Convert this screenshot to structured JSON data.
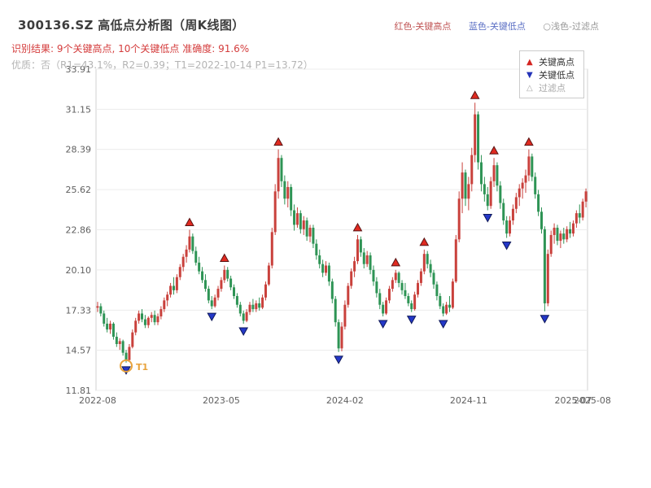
{
  "header": {
    "title": "300136.SZ 高低点分析图（周K线图）",
    "legend_top": [
      {
        "label": "红色-关键高点"
      },
      {
        "label": "蓝色-关键低点"
      },
      {
        "label": "○浅色-过滤点"
      }
    ],
    "result_line": "识别结果: 9个关键高点, 10个关键低点  准确度: 91.6%",
    "quality_line": "优质：否（R1=43.1%，R2=0.39；T1=2022-10-14 P1=13.72）"
  },
  "chart_data": {
    "type": "candlestick",
    "title": "300136.SZ 高低点分析图（周K线图）",
    "ylim": [
      11.81,
      33.91
    ],
    "y_ticks": [
      11.81,
      14.57,
      17.33,
      20.1,
      22.86,
      25.62,
      28.39,
      31.15,
      33.91
    ],
    "x_ticks": [
      {
        "label": "2022-08",
        "week": 0
      },
      {
        "label": "2023-05",
        "week": 39
      },
      {
        "label": "2024-02",
        "week": 78
      },
      {
        "label": "2024-11",
        "week": 117
      },
      {
        "label": "2025-07",
        "week": 150
      },
      {
        "label": "2025-08",
        "week": 156
      }
    ],
    "grid": "horizontal",
    "legend_position": "top-right",
    "colors": {
      "up": "#c9413c",
      "down": "#2e9455",
      "key_high": "#e02a20",
      "key_high_edge": "#5a1515",
      "key_low": "#2438c8",
      "key_low_edge": "#101a5a",
      "t1": "#e8a33d",
      "grid": "#ececec",
      "frame": "#d2d2d2"
    },
    "legend": [
      {
        "label": "关键高点",
        "marker": "▲",
        "type": "key-high"
      },
      {
        "label": "关键低点",
        "marker": "▼",
        "type": "key-low"
      },
      {
        "label": "过滤点",
        "marker": "△",
        "type": "filtered"
      }
    ],
    "key_highs": [
      {
        "i": 29,
        "price": 22.86
      },
      {
        "i": 40,
        "price": 20.4
      },
      {
        "i": 57,
        "price": 28.39
      },
      {
        "i": 82,
        "price": 22.5
      },
      {
        "i": 94,
        "price": 20.1
      },
      {
        "i": 103,
        "price": 21.5
      },
      {
        "i": 119,
        "price": 31.6
      },
      {
        "i": 125,
        "price": 27.8
      },
      {
        "i": 136,
        "price": 28.39
      }
    ],
    "key_lows": [
      {
        "i": 9,
        "price": 13.72
      },
      {
        "i": 36,
        "price": 17.4
      },
      {
        "i": 46,
        "price": 16.4
      },
      {
        "i": 76,
        "price": 14.45
      },
      {
        "i": 90,
        "price": 16.9
      },
      {
        "i": 99,
        "price": 17.2
      },
      {
        "i": 109,
        "price": 16.9
      },
      {
        "i": 123,
        "price": 24.2
      },
      {
        "i": 129,
        "price": 22.3
      },
      {
        "i": 141,
        "price": 17.25
      }
    ],
    "t1": {
      "i": 9,
      "price": 13.72,
      "label": "T1",
      "date": "2022-10-14"
    },
    "ohlc": [
      [
        17.5,
        17.9,
        17.2,
        17.6
      ],
      [
        17.6,
        17.8,
        16.9,
        17.1
      ],
      [
        17.1,
        17.3,
        16.2,
        16.4
      ],
      [
        16.4,
        16.8,
        15.8,
        16.0
      ],
      [
        16.0,
        16.6,
        15.7,
        16.4
      ],
      [
        16.4,
        16.5,
        15.3,
        15.5
      ],
      [
        15.5,
        15.8,
        14.8,
        15.0
      ],
      [
        15.0,
        15.4,
        14.6,
        15.2
      ],
      [
        15.2,
        15.3,
        14.2,
        14.4
      ],
      [
        14.4,
        14.6,
        13.72,
        13.9
      ],
      [
        13.9,
        15.0,
        13.8,
        14.8
      ],
      [
        14.8,
        16.0,
        14.7,
        15.8
      ],
      [
        15.8,
        16.8,
        15.6,
        16.6
      ],
      [
        16.6,
        17.3,
        16.4,
        17.1
      ],
      [
        17.1,
        17.4,
        16.5,
        16.7
      ],
      [
        16.7,
        17.0,
        16.1,
        16.3
      ],
      [
        16.3,
        16.9,
        16.1,
        16.8
      ],
      [
        16.8,
        17.2,
        16.5,
        17.0
      ],
      [
        17.0,
        17.3,
        16.3,
        16.5
      ],
      [
        16.5,
        17.1,
        16.3,
        16.9
      ],
      [
        16.9,
        17.6,
        16.7,
        17.4
      ],
      [
        17.4,
        18.2,
        17.2,
        18.0
      ],
      [
        18.0,
        18.6,
        17.6,
        18.4
      ],
      [
        18.4,
        19.2,
        18.2,
        19.0
      ],
      [
        19.0,
        19.6,
        18.4,
        18.7
      ],
      [
        18.7,
        19.8,
        18.5,
        19.6
      ],
      [
        19.6,
        20.5,
        19.4,
        20.3
      ],
      [
        20.3,
        21.2,
        20.0,
        21.0
      ],
      [
        21.0,
        21.8,
        20.6,
        21.5
      ],
      [
        21.5,
        22.86,
        21.3,
        22.4
      ],
      [
        22.4,
        22.6,
        21.2,
        21.4
      ],
      [
        21.4,
        21.7,
        20.4,
        20.6
      ],
      [
        20.6,
        21.0,
        19.8,
        20.0
      ],
      [
        20.0,
        20.3,
        19.2,
        19.4
      ],
      [
        19.4,
        19.8,
        18.6,
        18.8
      ],
      [
        18.8,
        19.0,
        17.8,
        18.0
      ],
      [
        18.0,
        18.3,
        17.4,
        17.6
      ],
      [
        17.6,
        18.4,
        17.5,
        18.2
      ],
      [
        18.2,
        19.0,
        18.0,
        18.8
      ],
      [
        18.8,
        19.6,
        18.6,
        19.4
      ],
      [
        19.4,
        20.4,
        19.2,
        20.1
      ],
      [
        20.1,
        20.3,
        19.3,
        19.5
      ],
      [
        19.5,
        19.7,
        18.7,
        18.9
      ],
      [
        18.9,
        19.1,
        18.1,
        18.3
      ],
      [
        18.3,
        18.5,
        17.5,
        17.7
      ],
      [
        17.7,
        17.9,
        16.9,
        17.1
      ],
      [
        17.1,
        17.3,
        16.4,
        16.6
      ],
      [
        16.6,
        17.4,
        16.5,
        17.2
      ],
      [
        17.2,
        17.9,
        17.0,
        17.7
      ],
      [
        17.7,
        18.1,
        17.2,
        17.4
      ],
      [
        17.4,
        18.0,
        17.2,
        17.8
      ],
      [
        17.8,
        18.2,
        17.3,
        17.5
      ],
      [
        17.5,
        18.4,
        17.4,
        18.2
      ],
      [
        18.2,
        19.3,
        18.0,
        19.1
      ],
      [
        19.1,
        20.6,
        19.0,
        20.4
      ],
      [
        20.4,
        23.0,
        20.2,
        22.7
      ],
      [
        22.7,
        26.0,
        22.5,
        25.5
      ],
      [
        25.5,
        28.39,
        25.0,
        27.8
      ],
      [
        27.8,
        28.0,
        25.8,
        26.2
      ],
      [
        26.2,
        26.6,
        24.6,
        25.0
      ],
      [
        25.0,
        26.2,
        24.4,
        25.8
      ],
      [
        25.8,
        26.0,
        23.8,
        24.2
      ],
      [
        24.2,
        24.6,
        22.8,
        23.2
      ],
      [
        23.2,
        24.4,
        23.0,
        24.0
      ],
      [
        24.0,
        24.2,
        22.6,
        22.9
      ],
      [
        22.9,
        23.8,
        22.5,
        23.5
      ],
      [
        23.5,
        23.7,
        22.1,
        22.4
      ],
      [
        22.4,
        23.2,
        22.0,
        23.0
      ],
      [
        23.0,
        23.2,
        21.6,
        21.9
      ],
      [
        21.9,
        22.2,
        20.8,
        21.1
      ],
      [
        21.1,
        21.5,
        20.2,
        20.5
      ],
      [
        20.5,
        20.8,
        19.6,
        19.9
      ],
      [
        19.9,
        20.7,
        19.7,
        20.4
      ],
      [
        20.4,
        20.6,
        19.0,
        19.3
      ],
      [
        19.3,
        19.5,
        17.8,
        18.1
      ],
      [
        18.1,
        18.3,
        16.2,
        16.5
      ],
      [
        16.5,
        16.7,
        14.45,
        14.7
      ],
      [
        14.7,
        16.5,
        14.5,
        16.2
      ],
      [
        16.2,
        18.0,
        16.0,
        17.7
      ],
      [
        17.7,
        19.2,
        17.5,
        19.0
      ],
      [
        19.0,
        20.2,
        18.8,
        20.0
      ],
      [
        20.0,
        21.0,
        19.6,
        20.7
      ],
      [
        20.7,
        22.5,
        20.5,
        22.2
      ],
      [
        22.2,
        22.4,
        21.0,
        21.3
      ],
      [
        21.3,
        21.6,
        20.2,
        20.5
      ],
      [
        20.5,
        21.4,
        20.3,
        21.1
      ],
      [
        21.1,
        21.3,
        19.8,
        20.1
      ],
      [
        20.1,
        20.4,
        19.0,
        19.3
      ],
      [
        19.3,
        19.6,
        18.2,
        18.5
      ],
      [
        18.5,
        18.8,
        17.4,
        17.7
      ],
      [
        17.7,
        17.9,
        16.9,
        17.1
      ],
      [
        17.1,
        18.2,
        17.0,
        18.0
      ],
      [
        18.0,
        19.0,
        17.8,
        18.8
      ],
      [
        18.8,
        19.6,
        18.6,
        19.4
      ],
      [
        19.4,
        20.1,
        19.2,
        19.9
      ],
      [
        19.9,
        20.0,
        18.9,
        19.2
      ],
      [
        19.2,
        19.4,
        18.4,
        18.7
      ],
      [
        18.7,
        19.2,
        18.1,
        18.3
      ],
      [
        18.3,
        18.5,
        17.6,
        17.8
      ],
      [
        17.8,
        18.0,
        17.2,
        17.4
      ],
      [
        17.4,
        18.6,
        17.3,
        18.4
      ],
      [
        18.4,
        19.4,
        18.2,
        19.2
      ],
      [
        19.2,
        20.2,
        19.0,
        20.0
      ],
      [
        20.0,
        21.5,
        19.8,
        21.2
      ],
      [
        21.2,
        21.4,
        20.2,
        20.5
      ],
      [
        20.5,
        20.8,
        19.6,
        19.9
      ],
      [
        19.9,
        20.1,
        18.8,
        19.1
      ],
      [
        19.1,
        19.3,
        18.0,
        18.3
      ],
      [
        18.3,
        18.5,
        17.4,
        17.6
      ],
      [
        17.6,
        17.8,
        16.9,
        17.1
      ],
      [
        17.1,
        17.9,
        17.0,
        17.7
      ],
      [
        17.7,
        18.3,
        17.2,
        17.5
      ],
      [
        17.5,
        19.5,
        17.4,
        19.3
      ],
      [
        19.3,
        22.5,
        19.2,
        22.2
      ],
      [
        22.2,
        25.5,
        22.0,
        25.0
      ],
      [
        25.0,
        27.5,
        24.0,
        26.8
      ],
      [
        26.8,
        27.0,
        24.5,
        25.0
      ],
      [
        25.0,
        26.5,
        24.2,
        26.0
      ],
      [
        26.0,
        28.5,
        25.5,
        28.0
      ],
      [
        28.0,
        31.6,
        27.5,
        30.8
      ],
      [
        30.8,
        31.0,
        27.0,
        27.5
      ],
      [
        27.5,
        28.0,
        25.5,
        26.0
      ],
      [
        26.0,
        26.5,
        24.8,
        25.3
      ],
      [
        25.3,
        25.8,
        24.2,
        24.5
      ],
      [
        24.5,
        26.5,
        24.3,
        26.2
      ],
      [
        26.2,
        27.8,
        25.8,
        27.3
      ],
      [
        27.3,
        27.5,
        25.5,
        25.9
      ],
      [
        25.9,
        26.2,
        24.3,
        24.7
      ],
      [
        24.7,
        25.0,
        23.2,
        23.5
      ],
      [
        23.5,
        23.8,
        22.3,
        22.6
      ],
      [
        22.6,
        23.8,
        22.4,
        23.5
      ],
      [
        23.5,
        24.6,
        23.2,
        24.3
      ],
      [
        24.3,
        25.4,
        24.0,
        25.1
      ],
      [
        25.1,
        26.0,
        24.5,
        25.7
      ],
      [
        25.7,
        26.4,
        25.0,
        26.1
      ],
      [
        26.1,
        27.0,
        25.4,
        26.6
      ],
      [
        26.6,
        28.39,
        26.2,
        27.9
      ],
      [
        27.9,
        28.1,
        26.2,
        26.5
      ],
      [
        26.5,
        26.8,
        25.0,
        25.3
      ],
      [
        25.3,
        25.6,
        23.8,
        24.1
      ],
      [
        24.1,
        24.4,
        22.6,
        22.9
      ],
      [
        22.9,
        23.1,
        17.25,
        17.8
      ],
      [
        17.8,
        21.5,
        17.6,
        21.2
      ],
      [
        21.2,
        22.8,
        21.0,
        22.5
      ],
      [
        22.5,
        23.3,
        21.9,
        23.0
      ],
      [
        23.0,
        23.2,
        21.8,
        22.1
      ],
      [
        22.1,
        22.8,
        21.6,
        22.6
      ],
      [
        22.6,
        23.0,
        21.9,
        22.2
      ],
      [
        22.2,
        23.1,
        22.0,
        22.9
      ],
      [
        22.9,
        23.4,
        22.3,
        22.6
      ],
      [
        22.6,
        23.5,
        22.4,
        23.3
      ],
      [
        23.3,
        24.2,
        23.0,
        24.0
      ],
      [
        24.0,
        24.6,
        23.3,
        23.7
      ],
      [
        23.7,
        25.0,
        23.5,
        24.8
      ],
      [
        24.8,
        25.7,
        24.4,
        25.5
      ]
    ]
  }
}
